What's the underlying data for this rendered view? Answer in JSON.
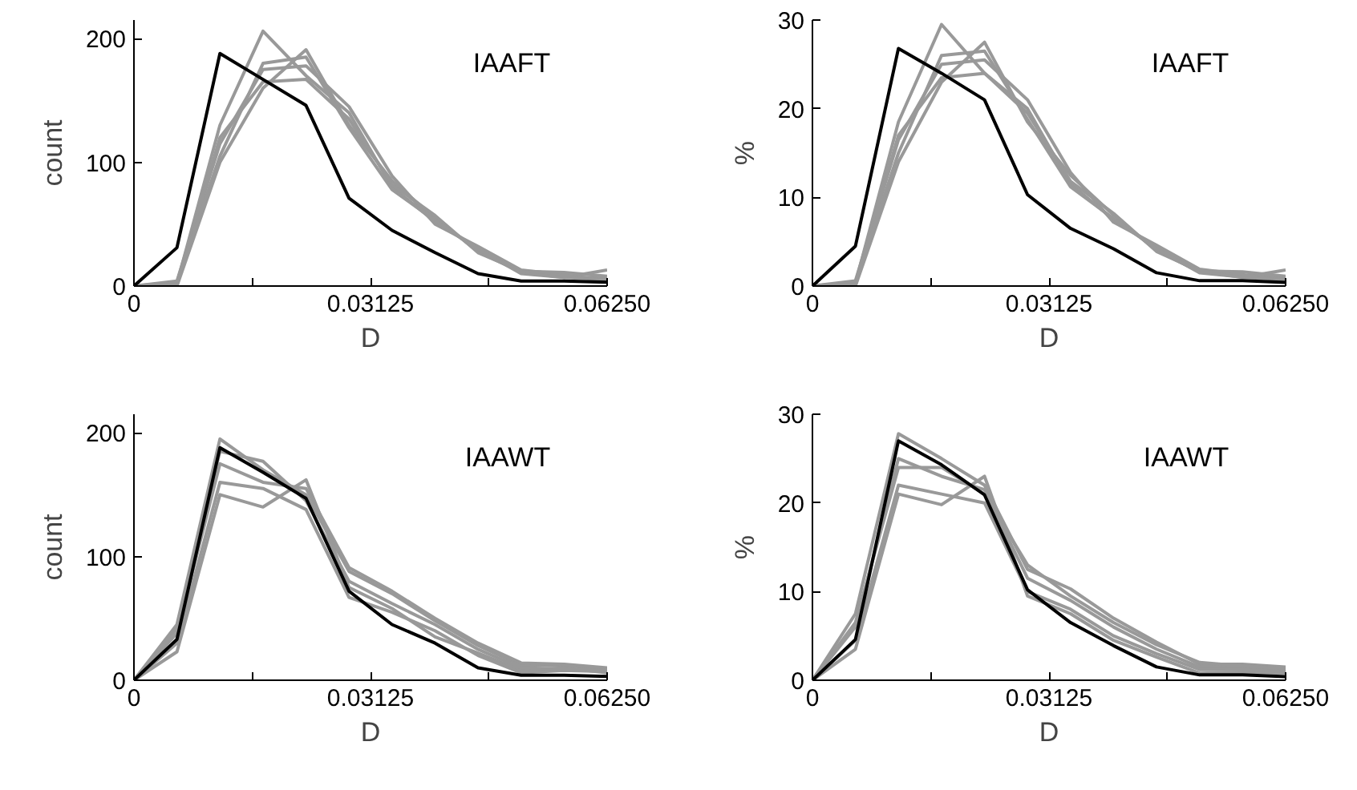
{
  "chart_data": [
    {
      "type": "line",
      "xlabel": "D",
      "ylabel": "count",
      "annotations": [
        "IAAFT"
      ],
      "grid": false,
      "x": [
        0,
        0.00568,
        0.01136,
        0.01705,
        0.02273,
        0.02841,
        0.03409,
        0.03977,
        0.04545,
        0.05114,
        0.05682,
        0.0625
      ],
      "xlim": [
        0,
        0.0625
      ],
      "xticks": [
        0,
        {
          "value": 0.015625,
          "label": null
        },
        0.03125,
        {
          "value": 0.046875,
          "label": null
        },
        {
          "value": 0.0625,
          "label": "0.06250"
        }
      ],
      "ylim": [
        0,
        215
      ],
      "yticks": [
        0,
        100,
        200
      ],
      "series": [
        {
          "color": "#999999",
          "values": [
            0,
            2,
            130,
            206,
            170,
            140,
            80,
            52,
            30,
            12,
            8,
            6
          ]
        },
        {
          "color": "#999999",
          "values": [
            0,
            0,
            100,
            160,
            191,
            130,
            85,
            55,
            28,
            11,
            7,
            13
          ]
        },
        {
          "color": "#999999",
          "values": [
            0,
            4,
            115,
            175,
            178,
            145,
            89,
            50,
            32,
            13,
            9,
            4
          ]
        },
        {
          "color": "#999999",
          "values": [
            0,
            1,
            120,
            165,
            167,
            135,
            82,
            57,
            27,
            12,
            11,
            8
          ]
        },
        {
          "color": "#999999",
          "values": [
            0,
            3,
            105,
            180,
            185,
            128,
            78,
            53,
            30,
            10,
            7,
            5
          ]
        },
        {
          "color": "#000000",
          "values": [
            0,
            31,
            188,
            167,
            146,
            71,
            45,
            27,
            10,
            4,
            4,
            3
          ]
        }
      ]
    },
    {
      "type": "line",
      "xlabel": "D",
      "ylabel": "%",
      "annotations": [
        "IAAFT"
      ],
      "grid": false,
      "x": [
        0,
        0.00568,
        0.01136,
        0.01705,
        0.02273,
        0.02841,
        0.03409,
        0.03977,
        0.04545,
        0.05114,
        0.05682,
        0.0625
      ],
      "xlim": [
        0,
        0.0625
      ],
      "xticks": [
        0,
        {
          "value": 0.015625,
          "label": null
        },
        0.03125,
        {
          "value": 0.046875,
          "label": null
        },
        {
          "value": 0.0625,
          "label": "0.06250"
        }
      ],
      "ylim": [
        0,
        30
      ],
      "yticks": [
        0,
        10,
        20,
        30
      ],
      "series": [
        {
          "color": "#999999",
          "values": [
            0,
            0.3,
            18.5,
            29.5,
            24,
            20,
            11.5,
            7.5,
            4.3,
            1.7,
            1.2,
            0.9
          ]
        },
        {
          "color": "#999999",
          "values": [
            0,
            0,
            14,
            23,
            27.5,
            18.5,
            12.5,
            8,
            4,
            1.6,
            1,
            1.8
          ]
        },
        {
          "color": "#999999",
          "values": [
            0,
            0.6,
            16.5,
            25,
            25.5,
            21,
            12.8,
            7.2,
            4.6,
            1.9,
            1.3,
            0.6
          ]
        },
        {
          "color": "#999999",
          "values": [
            0,
            0.2,
            17,
            23.5,
            24,
            19.5,
            11.8,
            8.2,
            3.9,
            1.7,
            1.6,
            1.1
          ]
        },
        {
          "color": "#999999",
          "values": [
            0,
            0.4,
            15,
            26,
            26.5,
            18.8,
            11.2,
            7.6,
            4.2,
            1.5,
            1,
            0.7
          ]
        },
        {
          "color": "#000000",
          "values": [
            0,
            4.5,
            26.8,
            24,
            21,
            10.3,
            6.5,
            4.2,
            1.5,
            0.6,
            0.6,
            0.4
          ]
        }
      ]
    },
    {
      "type": "line",
      "xlabel": "D",
      "ylabel": "count",
      "annotations": [
        "IAAWT"
      ],
      "grid": false,
      "x": [
        0,
        0.00568,
        0.01136,
        0.01705,
        0.02273,
        0.02841,
        0.03409,
        0.03977,
        0.04545,
        0.05114,
        0.05682,
        0.0625
      ],
      "xlim": [
        0,
        0.0625
      ],
      "xticks": [
        0,
        {
          "value": 0.015625,
          "label": null
        },
        0.03125,
        {
          "value": 0.046875,
          "label": null
        },
        {
          "value": 0.0625,
          "label": "0.06250"
        }
      ],
      "ylim": [
        0,
        215
      ],
      "yticks": [
        0,
        100,
        200
      ],
      "series": [
        {
          "color": "#999999",
          "values": [
            0,
            45,
            195,
            170,
            150,
            88,
            70,
            48,
            28,
            12,
            12,
            9
          ]
        },
        {
          "color": "#999999",
          "values": [
            0,
            23,
            150,
            140,
            162,
            75,
            58,
            35,
            22,
            8,
            10,
            6
          ]
        },
        {
          "color": "#999999",
          "values": [
            0,
            38,
            175,
            160,
            155,
            91,
            72,
            50,
            30,
            14,
            13,
            10
          ]
        },
        {
          "color": "#999999",
          "values": [
            0,
            30,
            160,
            155,
            138,
            67,
            55,
            40,
            20,
            6,
            8,
            7
          ]
        },
        {
          "color": "#999999",
          "values": [
            0,
            42,
            185,
            177,
            145,
            80,
            62,
            45,
            25,
            10,
            9,
            8
          ]
        },
        {
          "color": "#000000",
          "values": [
            0,
            33,
            188,
            168,
            147,
            72,
            45,
            30,
            10,
            4,
            4,
            3
          ]
        }
      ]
    },
    {
      "type": "line",
      "xlabel": "D",
      "ylabel": "%",
      "annotations": [
        "IAAWT"
      ],
      "grid": false,
      "x": [
        0,
        0.00568,
        0.01136,
        0.01705,
        0.02273,
        0.02841,
        0.03409,
        0.03977,
        0.04545,
        0.05114,
        0.05682,
        0.0625
      ],
      "xlim": [
        0,
        0.0625
      ],
      "xticks": [
        0,
        {
          "value": 0.015625,
          "label": null
        },
        0.03125,
        {
          "value": 0.046875,
          "label": null
        },
        {
          "value": 0.0625,
          "label": "0.06250"
        }
      ],
      "ylim": [
        0,
        30
      ],
      "yticks": [
        0,
        10,
        20,
        30
      ],
      "series": [
        {
          "color": "#999999",
          "values": [
            0,
            7.5,
            27.8,
            25,
            22,
            12.5,
            10.3,
            7,
            4.3,
            1.8,
            1.8,
            1.5
          ]
        },
        {
          "color": "#999999",
          "values": [
            0,
            3.5,
            21,
            19.8,
            23,
            9.5,
            7.5,
            4.5,
            2.6,
            0.8,
            0.9,
            0.8
          ]
        },
        {
          "color": "#999999",
          "values": [
            0,
            6,
            25,
            23,
            21.5,
            11.5,
            9,
            6,
            3.5,
            1.5,
            1.5,
            1.2
          ]
        },
        {
          "color": "#999999",
          "values": [
            0,
            4.5,
            22,
            21,
            20,
            10,
            8,
            5,
            3,
            1.2,
            1.2,
            1
          ]
        },
        {
          "color": "#999999",
          "values": [
            0,
            6.5,
            24,
            24,
            21,
            13,
            9.5,
            6.5,
            4,
            2,
            1.6,
            1.3
          ]
        },
        {
          "color": "#000000",
          "values": [
            0,
            4.6,
            27,
            24.3,
            20.9,
            10.2,
            6.5,
            3.9,
            1.5,
            0.6,
            0.6,
            0.4
          ]
        }
      ]
    }
  ]
}
